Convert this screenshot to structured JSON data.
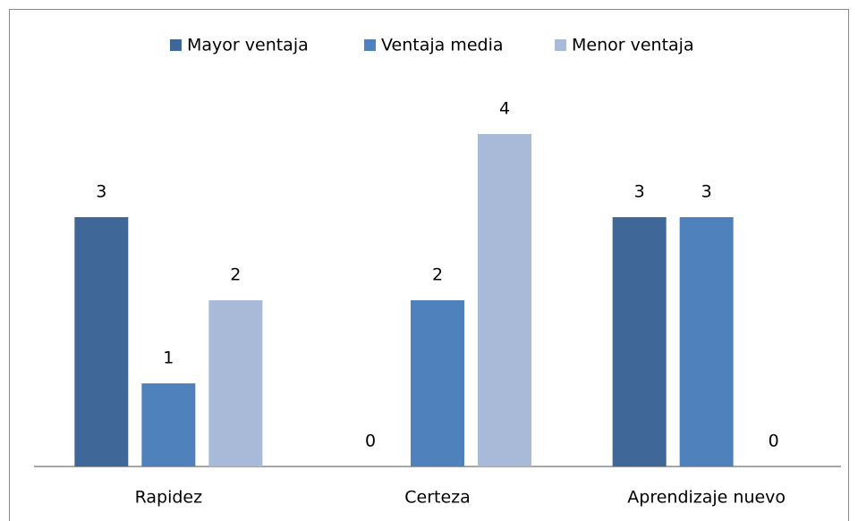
{
  "chart_data": {
    "type": "bar",
    "categories": [
      "Rapidez",
      "Certeza",
      "Aprendizaje nuevo"
    ],
    "series": [
      {
        "name": "Mayor ventaja",
        "color": "#3f6899",
        "values": [
          3,
          0,
          3
        ]
      },
      {
        "name": "Ventaja media",
        "color": "#4f81bd",
        "values": [
          1,
          2,
          3
        ]
      },
      {
        "name": "Menor ventaja",
        "color": "#a9bad8",
        "values": [
          2,
          4,
          0
        ]
      }
    ],
    "ylim": [
      0,
      5
    ],
    "legend": "top"
  }
}
